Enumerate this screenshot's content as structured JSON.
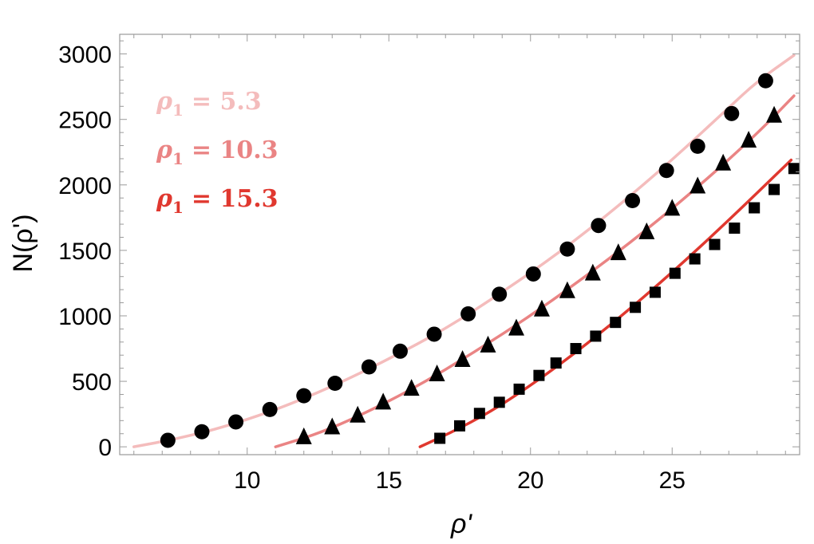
{
  "chart_data": {
    "type": "scatter",
    "xlabel": "ρ'",
    "ylabel": "N(ρ')",
    "xlim": [
      5.5,
      29.5
    ],
    "ylim": [
      -60,
      3150
    ],
    "xticks": [
      10,
      15,
      20,
      25
    ],
    "yticks": [
      0,
      500,
      1000,
      1500,
      2000,
      2500,
      3000
    ],
    "grid": false,
    "legend_position": "top-left",
    "series": [
      {
        "name": "ρ₁ = 5.3",
        "legend_symbol": "ρ",
        "legend_subscript": "1",
        "legend_value": "= 5.3",
        "color": "#f4bcbc",
        "marker": "circle",
        "x": [
          7.2,
          8.4,
          9.6,
          10.8,
          12.0,
          13.1,
          14.3,
          15.4,
          16.6,
          17.8,
          18.9,
          20.1,
          21.3,
          22.4,
          23.6,
          24.8,
          25.9,
          27.1,
          28.3
        ],
        "y": [
          50,
          115,
          190,
          285,
          390,
          485,
          610,
          730,
          860,
          1015,
          1165,
          1320,
          1510,
          1690,
          1880,
          2110,
          2295,
          2545,
          2795
        ],
        "curve_x": [
          6,
          7.5,
          9,
          11,
          13,
          15,
          17,
          19,
          21,
          23,
          25,
          27,
          28,
          29.3
        ],
        "curve_y": [
          0,
          60,
          140,
          280,
          460,
          670,
          900,
          1180,
          1480,
          1820,
          2190,
          2590,
          2790,
          2990
        ]
      },
      {
        "name": "ρ₁ = 10.3",
        "legend_symbol": "ρ",
        "legend_subscript": "1",
        "legend_value": "= 10.3",
        "color": "#ea8484",
        "marker": "triangle",
        "x": [
          12.0,
          13.0,
          13.9,
          14.8,
          15.8,
          16.7,
          17.6,
          18.5,
          19.5,
          20.4,
          21.3,
          22.2,
          23.1,
          24.1,
          25.0,
          25.9,
          26.8,
          27.7,
          28.6
        ],
        "y": [
          75,
          150,
          240,
          340,
          445,
          555,
          665,
          775,
          905,
          1050,
          1190,
          1325,
          1480,
          1640,
          1820,
          1990,
          2165,
          2340,
          2530
        ],
        "curve_x": [
          11,
          12.5,
          14,
          16,
          18,
          20,
          22,
          24,
          26,
          28,
          29.3
        ],
        "curve_y": [
          0,
          100,
          240,
          460,
          720,
          1000,
          1310,
          1640,
          2000,
          2390,
          2680
        ]
      },
      {
        "name": "ρ₁ = 15.3",
        "legend_symbol": "ρ",
        "legend_subscript": "1",
        "legend_value": "= 15.3",
        "color": "#e0382f",
        "marker": "square",
        "x": [
          16.8,
          17.5,
          18.2,
          18.9,
          19.6,
          20.3,
          20.9,
          21.6,
          22.3,
          23.0,
          23.7,
          24.4,
          25.1,
          25.8,
          26.5,
          27.2,
          27.9,
          28.6,
          29.3
        ],
        "y": [
          65,
          160,
          255,
          340,
          440,
          545,
          640,
          750,
          845,
          950,
          1065,
          1180,
          1325,
          1435,
          1545,
          1670,
          1825,
          1965,
          2125
        ],
        "curve_x": [
          16.1,
          17.5,
          19,
          21,
          23,
          25,
          27,
          29.2
        ],
        "curve_y": [
          0,
          140,
          320,
          620,
          960,
          1330,
          1730,
          2190
        ]
      }
    ]
  }
}
